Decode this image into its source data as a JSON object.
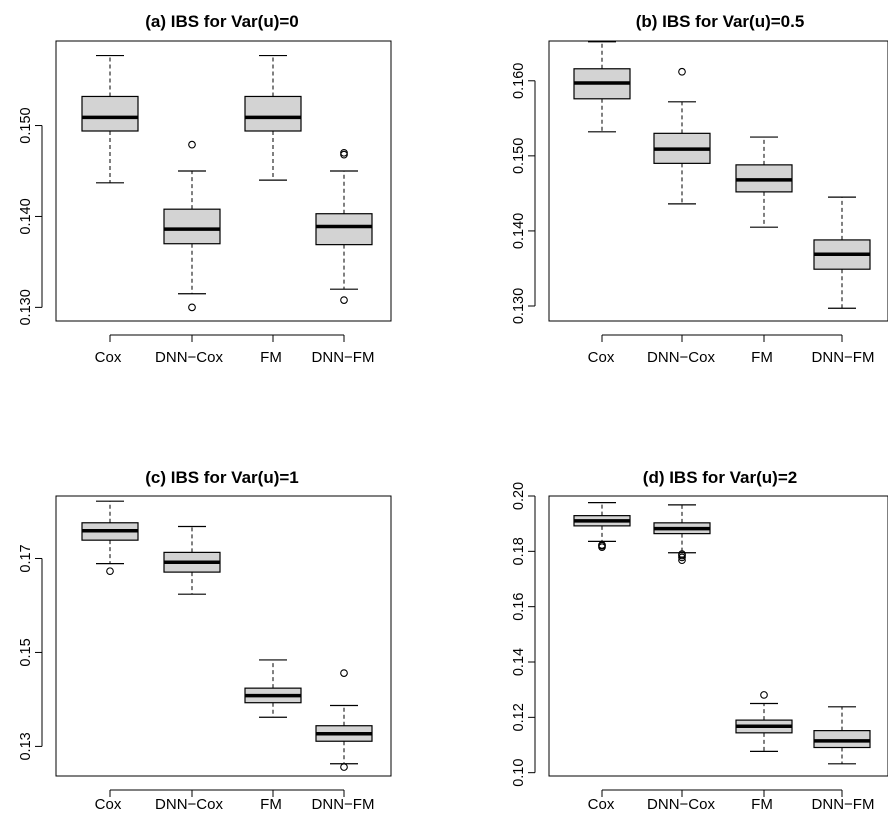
{
  "chart_data": [
    {
      "type": "box",
      "title": "(a) IBS for Var(u)=0",
      "categories": [
        "Cox",
        "DNN−Cox",
        "FM",
        "DNN−FM"
      ],
      "yticks": [
        "0.130",
        "0.140",
        "0.150"
      ],
      "ylim": [
        0.1285,
        0.1593
      ],
      "boxes": [
        {
          "category": "Cox",
          "min": 0.1437,
          "q1": 0.1494,
          "median": 0.1509,
          "q3": 0.1532,
          "max": 0.1577,
          "outliers": []
        },
        {
          "category": "DNN−Cox",
          "min": 0.1315,
          "q1": 0.137,
          "median": 0.1386,
          "q3": 0.1408,
          "max": 0.145,
          "outliers": [
            0.1479,
            0.13
          ]
        },
        {
          "category": "FM",
          "min": 0.144,
          "q1": 0.1494,
          "median": 0.1509,
          "q3": 0.1532,
          "max": 0.1577,
          "outliers": []
        },
        {
          "category": "DNN−FM",
          "min": 0.132,
          "q1": 0.1369,
          "median": 0.1389,
          "q3": 0.1403,
          "max": 0.145,
          "outliers": [
            0.1468,
            0.147,
            0.1308
          ]
        }
      ]
    },
    {
      "type": "box",
      "title": "(b) IBS for Var(u)=0.5",
      "categories": [
        "Cox",
        "DNN−Cox",
        "FM",
        "DNN−FM"
      ],
      "yticks": [
        "0.130",
        "0.140",
        "0.150",
        "0.160"
      ],
      "ylim": [
        0.128,
        0.1653
      ],
      "boxes": [
        {
          "category": "Cox",
          "min": 0.1532,
          "q1": 0.1576,
          "median": 0.1597,
          "q3": 0.1616,
          "max": 0.1652,
          "outliers": []
        },
        {
          "category": "DNN−Cox",
          "min": 0.1436,
          "q1": 0.149,
          "median": 0.1509,
          "q3": 0.153,
          "max": 0.1572,
          "outliers": [
            0.1612
          ]
        },
        {
          "category": "FM",
          "min": 0.1405,
          "q1": 0.1452,
          "median": 0.1468,
          "q3": 0.1488,
          "max": 0.1525,
          "outliers": []
        },
        {
          "category": "DNN−FM",
          "min": 0.1297,
          "q1": 0.1349,
          "median": 0.1369,
          "q3": 0.1388,
          "max": 0.1445,
          "outliers": []
        }
      ]
    },
    {
      "type": "box",
      "title": "(c) IBS for Var(u)=1",
      "categories": [
        "Cox",
        "DNN−Cox",
        "FM",
        "DNN−FM"
      ],
      "yticks": [
        "0.13",
        "0.15",
        "0.17"
      ],
      "ylim": [
        0.1237,
        0.1833
      ],
      "boxes": [
        {
          "category": "Cox",
          "min": 0.1689,
          "q1": 0.1739,
          "median": 0.1759,
          "q3": 0.1776,
          "max": 0.1822,
          "outliers": [
            0.1673
          ]
        },
        {
          "category": "DNN−Cox",
          "min": 0.1624,
          "q1": 0.1671,
          "median": 0.1692,
          "q3": 0.1713,
          "max": 0.1768,
          "outliers": []
        },
        {
          "category": "FM",
          "min": 0.1362,
          "q1": 0.1393,
          "median": 0.1408,
          "q3": 0.1424,
          "max": 0.1484,
          "outliers": []
        },
        {
          "category": "DNN−FM",
          "min": 0.1263,
          "q1": 0.1311,
          "median": 0.1327,
          "q3": 0.1344,
          "max": 0.1387,
          "outliers": [
            0.1456,
            0.1256
          ]
        }
      ]
    },
    {
      "type": "box",
      "title": "(d) IBS for Var(u)=2",
      "categories": [
        "Cox",
        "DNN−Cox",
        "FM",
        "DNN−FM"
      ],
      "yticks": [
        "0.10",
        "0.12",
        "0.14",
        "0.16",
        "0.18",
        "0.20"
      ],
      "ylim": [
        0.0988,
        0.2
      ],
      "boxes": [
        {
          "category": "Cox",
          "min": 0.1836,
          "q1": 0.1892,
          "median": 0.191,
          "q3": 0.1929,
          "max": 0.1976,
          "outliers": [
            0.1823,
            0.1815,
            0.182
          ]
        },
        {
          "category": "DNN−Cox",
          "min": 0.1795,
          "q1": 0.1864,
          "median": 0.1882,
          "q3": 0.1903,
          "max": 0.1968,
          "outliers": [
            0.179,
            0.1778,
            0.1768,
            0.1785
          ]
        },
        {
          "category": "FM",
          "min": 0.1077,
          "q1": 0.1144,
          "median": 0.1168,
          "q3": 0.119,
          "max": 0.125,
          "outliers": [
            0.1281
          ]
        },
        {
          "category": "DNN−FM",
          "min": 0.1032,
          "q1": 0.1091,
          "median": 0.1115,
          "q3": 0.1152,
          "max": 0.1238,
          "outliers": []
        }
      ]
    }
  ]
}
